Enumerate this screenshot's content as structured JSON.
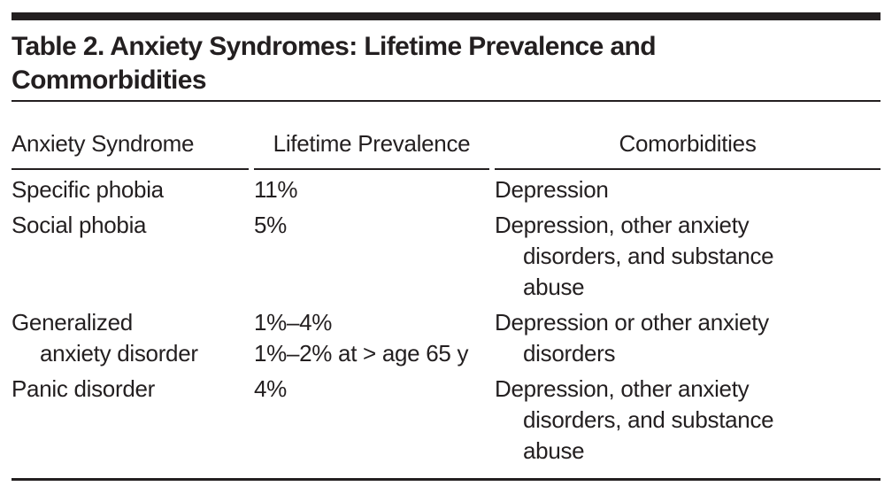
{
  "title": "Table 2. Anxiety Syndromes: Lifetime Prevalence and\nCommorbidities",
  "table": {
    "columns": [
      "Anxiety Syndrome",
      "Lifetime Prevalence",
      "Comorbidities"
    ],
    "rows": [
      {
        "syndrome": "Specific phobia",
        "prevalence": "11%",
        "comorbidities": "Depression"
      },
      {
        "syndrome": "Social phobia",
        "prevalence": "5%",
        "comorbidities": "Depression, other anxiety\ndisorders, and substance\nabuse"
      },
      {
        "syndrome": "Generalized\nanxiety disorder",
        "prevalence": "1%–4%\n1%–2% at > age 65 y",
        "comorbidities": "Depression or other anxiety\ndisorders"
      },
      {
        "syndrome": "Panic disorder",
        "prevalence": "4%",
        "comorbidities": "Depression, other anxiety\ndisorders, and substance\nabuse"
      }
    ]
  },
  "colors": {
    "text": "#231f20",
    "rule": "#231f20",
    "background": "#ffffff"
  }
}
